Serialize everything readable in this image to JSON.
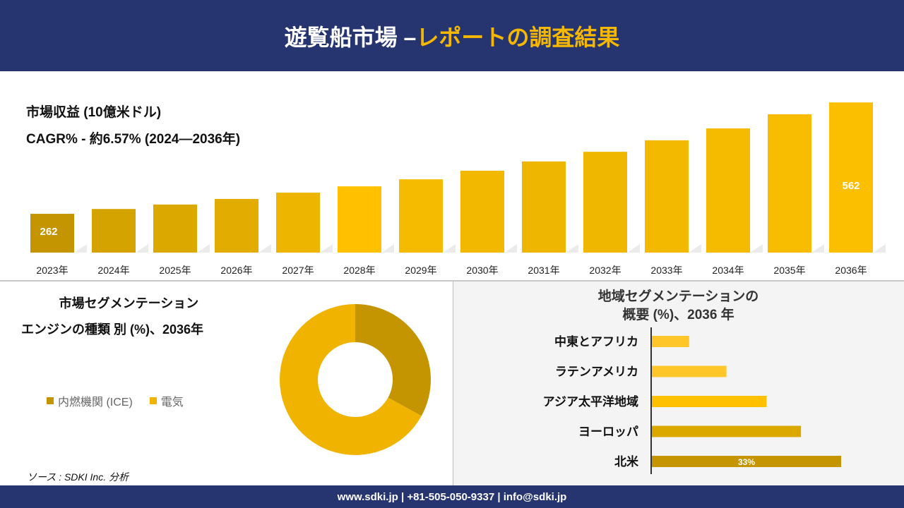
{
  "header": {
    "title_main": "遊覧船市場 –",
    "title_accent": "レポートの調査結果"
  },
  "colors": {
    "navy": "#263470",
    "accent": "#f5b800",
    "ice": "#c49500",
    "electric": "#f0b400"
  },
  "chart_data": [
    {
      "type": "bar",
      "title": "市場収益 (10億米ドル)",
      "subtitle": "CAGR% - 約6.57% (2024—2036年)",
      "categories": [
        "2023年",
        "2024年",
        "2025年",
        "2026年",
        "2027年",
        "2028年",
        "2029年",
        "2030年",
        "2031年",
        "2032年",
        "2033年",
        "2034年",
        "2035年",
        "2036年"
      ],
      "values": [
        262,
        275,
        287,
        302,
        319,
        336,
        355,
        378,
        403,
        429,
        460,
        492,
        530,
        562
      ],
      "data_labels": {
        "0": "262",
        "13": "562"
      },
      "bar_colors": [
        "#c49500",
        "#d4a300",
        "#dba800",
        "#e2ac00",
        "#eeb500",
        "#ffc000",
        "#f5bb00",
        "#f2b800",
        "#efb600",
        "#f0b700",
        "#f3b900",
        "#f5bb00",
        "#f8bd00",
        "#fbbf00"
      ],
      "grid": false
    },
    {
      "type": "pie",
      "title": "市場セグメンテーション",
      "subtitle": "エンジンの種類 別 (%)、2036年",
      "series": [
        {
          "name": "内燃機関 (ICE)",
          "value": 33,
          "color": "#c49500"
        },
        {
          "name": "電気",
          "value": 67,
          "color": "#f0b400"
        }
      ],
      "donut": true,
      "legend": "left"
    },
    {
      "type": "bar",
      "orientation": "horizontal",
      "title": "地域セグメンテーションの",
      "subtitle": "概要 (%)、2036 年",
      "categories": [
        "中東とアフリカ",
        "ラテンアメリカ",
        "アジア太平洋地域",
        "ヨーロッパ",
        "北米"
      ],
      "values": [
        6.5,
        13,
        20,
        26,
        33
      ],
      "data_labels": {
        "4": "33%"
      },
      "bar_colors": [
        "#ffc629",
        "#ffc629",
        "#ffc000",
        "#dba800",
        "#c49500"
      ]
    }
  ],
  "source": "ソース : SDKI Inc. 分析",
  "footer": {
    "contact": "www.sdki.jp | +81-505-050-9337 | info@sdki.jp"
  }
}
